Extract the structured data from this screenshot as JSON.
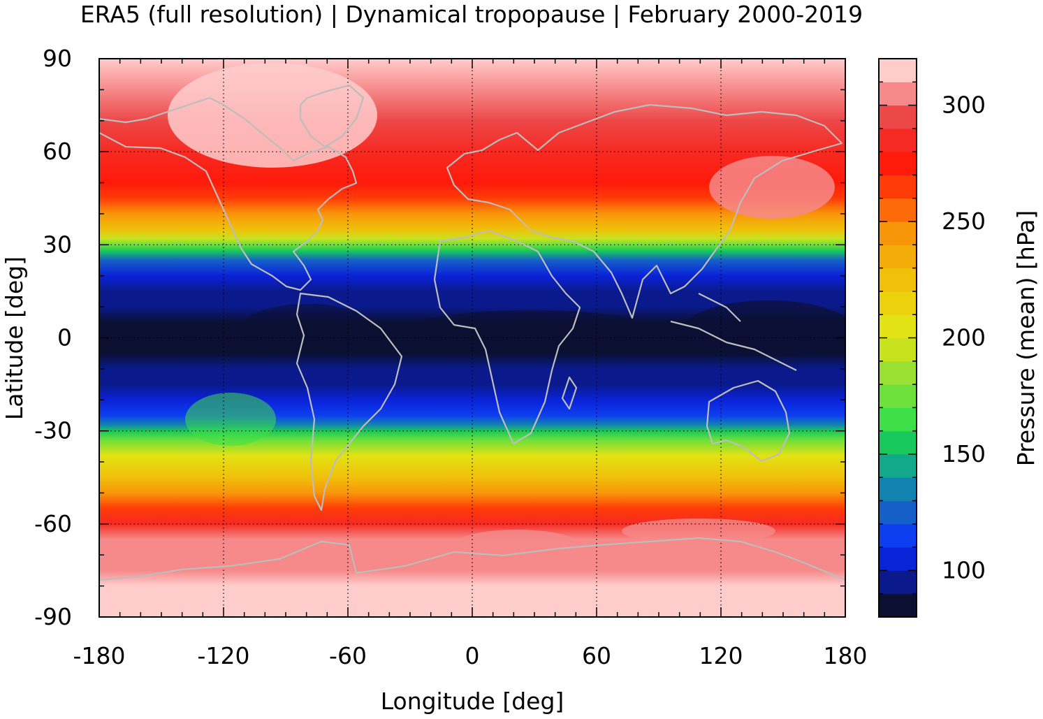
{
  "chart_data": {
    "type": "heatmap",
    "title": "ERA5 (full resolution) | Dynamical tropopause | February 2000-2019",
    "xlabel": "Longitude [deg]",
    "ylabel": "Latitude [deg]",
    "colorbar_label": "Pressure (mean) [hPa]",
    "xlim": [
      -180,
      180
    ],
    "ylim": [
      -90,
      90
    ],
    "xticks": [
      -180,
      -120,
      -60,
      0,
      60,
      120,
      180
    ],
    "yticks": [
      90,
      60,
      30,
      0,
      -30,
      -60,
      -90
    ],
    "grid": true,
    "colorbar": {
      "range": [
        80,
        320
      ],
      "ticks": [
        100,
        150,
        200,
        250,
        300
      ],
      "levels": [
        {
          "from": 80,
          "to": 90,
          "color": "#0b1033"
        },
        {
          "from": 90,
          "to": 100,
          "color": "#0a1a8c"
        },
        {
          "from": 100,
          "to": 110,
          "color": "#0a22d8"
        },
        {
          "from": 110,
          "to": 120,
          "color": "#0d3ef0"
        },
        {
          "from": 120,
          "to": 130,
          "color": "#1560c8"
        },
        {
          "from": 130,
          "to": 140,
          "color": "#1282b0"
        },
        {
          "from": 140,
          "to": 150,
          "color": "#12a88a"
        },
        {
          "from": 150,
          "to": 160,
          "color": "#18c85a"
        },
        {
          "from": 160,
          "to": 170,
          "color": "#3ee04a"
        },
        {
          "from": 170,
          "to": 180,
          "color": "#6ee03c"
        },
        {
          "from": 180,
          "to": 190,
          "color": "#9ae032"
        },
        {
          "from": 190,
          "to": 200,
          "color": "#c8e21e"
        },
        {
          "from": 200,
          "to": 210,
          "color": "#e2e214"
        },
        {
          "from": 210,
          "to": 220,
          "color": "#ecd20c"
        },
        {
          "from": 220,
          "to": 230,
          "color": "#f0c00a"
        },
        {
          "from": 230,
          "to": 240,
          "color": "#f4ac0a"
        },
        {
          "from": 240,
          "to": 250,
          "color": "#f8960a"
        },
        {
          "from": 250,
          "to": 260,
          "color": "#fc6a0a"
        },
        {
          "from": 260,
          "to": 270,
          "color": "#ff3c08"
        },
        {
          "from": 270,
          "to": 280,
          "color": "#ff1a0a"
        },
        {
          "from": 280,
          "to": 290,
          "color": "#f62a22"
        },
        {
          "from": 290,
          "to": 300,
          "color": "#ec4848"
        },
        {
          "from": 300,
          "to": 310,
          "color": "#f68a8a"
        },
        {
          "from": 310,
          "to": 320,
          "color": "#ffcccc"
        }
      ]
    },
    "zonal_mean_profile": {
      "lat": [
        90,
        80,
        70,
        60,
        50,
        45,
        40,
        35,
        32,
        30,
        28,
        25,
        20,
        15,
        10,
        5,
        0,
        -5,
        -10,
        -15,
        -20,
        -25,
        -28,
        -30,
        -33,
        -38,
        -45,
        -50,
        -55,
        -60,
        -65,
        -70,
        -75,
        -80,
        -85,
        -90
      ],
      "pressure_hPa": [
        310,
        300,
        292,
        285,
        272,
        262,
        240,
        220,
        195,
        175,
        150,
        125,
        108,
        98,
        92,
        88,
        86,
        88,
        92,
        97,
        105,
        118,
        130,
        150,
        175,
        200,
        225,
        245,
        268,
        285,
        300,
        300,
        305,
        310,
        315,
        320
      ]
    },
    "annotations": [
      "coastlines"
    ]
  }
}
